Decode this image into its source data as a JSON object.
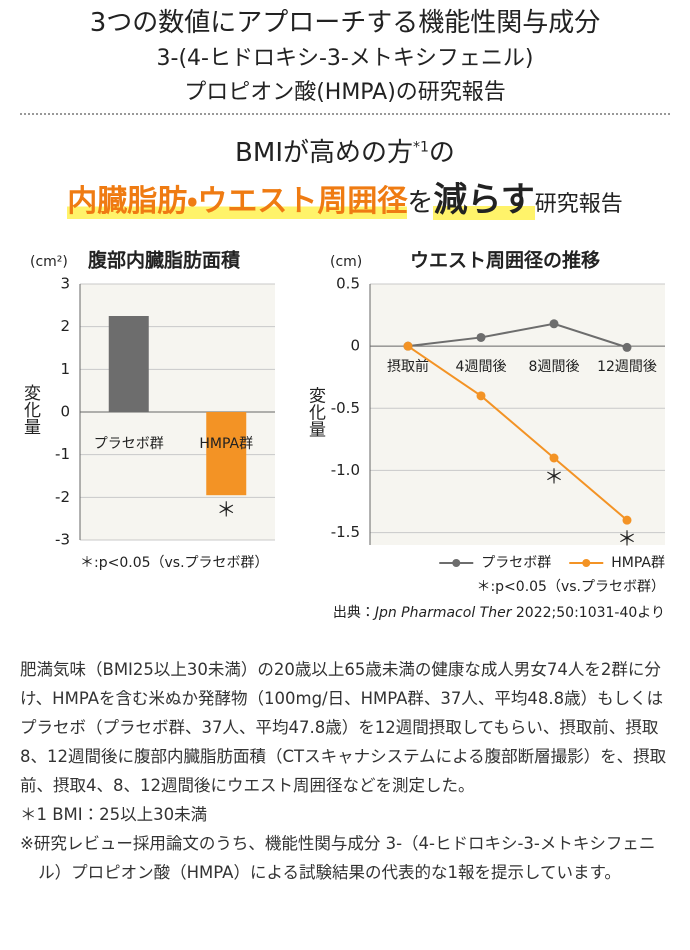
{
  "header": {
    "title_lines": [
      "3つの数値にアプローチする機能性関与成分",
      "3-(4-ヒドロキシ-3-メトキシフェニル)",
      "プロピオン酸(HMPA)の研究報告"
    ]
  },
  "headline": {
    "line1": [
      "BMIが高めの方",
      "*1",
      "の"
    ],
    "line2": [
      "内臓脂肪・ウエスト周囲径",
      "を",
      "減らす",
      "研究報告"
    ]
  },
  "chart_data": [
    {
      "type": "bar",
      "title": "腹部内臓脂肪面積",
      "unit": "(cm²)",
      "y_label": "変化量",
      "categories": [
        "プラセボ群",
        "HMPA群"
      ],
      "values": [
        2.25,
        -1.95
      ],
      "colors": [
        "#6d6d6d",
        "#f39325"
      ],
      "annotations": [
        null,
        "＊"
      ],
      "ylim": [
        -3,
        3
      ],
      "yticks": [
        3,
        2,
        1,
        0,
        -1,
        -2,
        -3
      ],
      "grid": true,
      "footnote": "＊:p<0.05（vs.プラセボ群）"
    },
    {
      "type": "line",
      "title": "ウエスト周囲径の推移",
      "unit": "(cm)",
      "y_label": "変化量",
      "categories": [
        "摂取前",
        "4週間後",
        "8週間後",
        "12週間後"
      ],
      "series": [
        {
          "name": "プラセボ群",
          "color": "#6d6d6d",
          "values": [
            0,
            0.07,
            0.18,
            -0.01
          ],
          "annotations": [
            null,
            null,
            null,
            null
          ]
        },
        {
          "name": "HMPA群",
          "color": "#f39325",
          "values": [
            0,
            -0.4,
            -0.9,
            -1.4
          ],
          "annotations": [
            null,
            null,
            "＊",
            "＊"
          ]
        }
      ],
      "ylim": [
        -1.6,
        0.5
      ],
      "yticks": [
        0.5,
        0,
        -0.5,
        {
          "value": -1,
          "label": "-1.0"
        },
        -1.5
      ],
      "grid": true,
      "legend": "bottom-right",
      "footnote": "＊:p<0.05（vs.プラセボ群）"
    }
  ],
  "source": [
    "出典：",
    "Jpn Pharmacol Ther",
    " 2022;50:1031-40より"
  ],
  "body": {
    "paragraph": "肥満気味（BMI25以上30未満）の20歳以上65歳未満の健康な成人男女74人を2群に分け、HMPAを含む米ぬか発酵物（100mg/日、HMPA群、37人、平均48.8歳）もしくはプラセボ（プラセボ群、37人、平均47.8歳）を12週間摂取してもらい、摂取前、摂取8、12週間後に腹部内臓脂肪面積（CTスキャナシステムによる腹部断層撮影）を、摂取前、摂取4、8、12週間後にウエスト周囲径などを測定した。",
    "notes": [
      "＊1 BMI：25以上30未満",
      "※研究レビュー採用論文のうち、機能性関与成分 3-（4-ヒドロキシ-3-メトキシフェニル）プロピオン酸（HMPA）による試験結果の代表的な1報を提示しています。"
    ]
  }
}
